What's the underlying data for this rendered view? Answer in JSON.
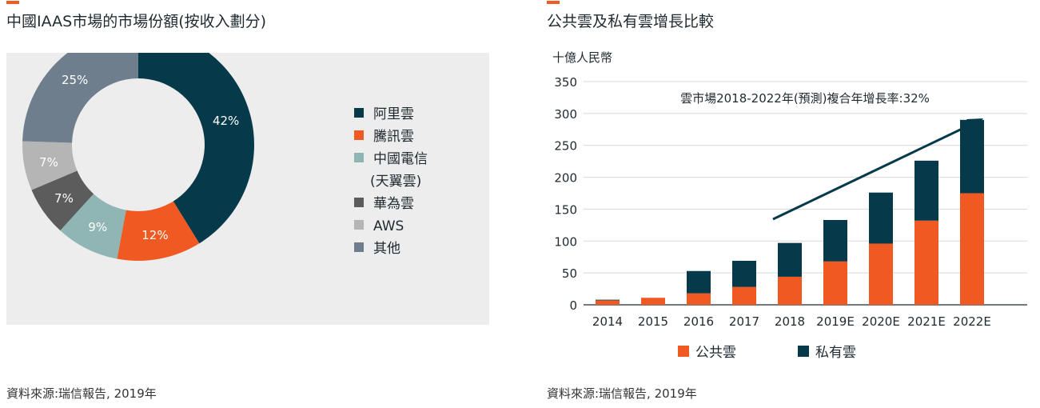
{
  "left": {
    "title": "中國IAAS市場的市場份額(按收入劃分)",
    "source": "資料來源:瑞信報告, 2019年"
  },
  "right": {
    "title": "公共雲及私有雲增長比較",
    "source": "資料來源:瑞信報告, 2019年"
  },
  "colors": {
    "accent": "#f05a22",
    "panel_bg": "#ededed",
    "alibaba": "#063a4a",
    "tencent": "#f05a22",
    "china_telecom": "#8fb5b5",
    "huawei": "#5c5c5c",
    "aws": "#b5b5b5",
    "other": "#6e7e8c",
    "public_cloud": "#f05a22",
    "private_cloud": "#063a4a"
  },
  "chart_data": [
    {
      "type": "pie",
      "donut": true,
      "title": "中國IAAS市場的市場份額(按收入劃分)",
      "slices": [
        {
          "label": "阿里雲",
          "value": 42,
          "value_label": "42%"
        },
        {
          "label": "騰訊雲",
          "value": 12,
          "value_label": "12%"
        },
        {
          "label": "中國電信",
          "label_line2": "(天翼雲)",
          "value": 9,
          "value_label": "9%"
        },
        {
          "label": "華為雲",
          "value": 7,
          "value_label": "7%"
        },
        {
          "label": "AWS",
          "value": 7,
          "value_label": "7%"
        },
        {
          "label": "其他",
          "value": 25,
          "value_label": "25%"
        }
      ],
      "legend_position": "right"
    },
    {
      "type": "bar",
      "stacked": true,
      "title": "公共雲及私有雲增長比較",
      "ylabel": "十億人民幣",
      "annotation": "雲市場2018-2022年(預測)複合年增長率:32%",
      "categories": [
        "2014",
        "2015",
        "2016",
        "2017",
        "2018",
        "2019E",
        "2020E",
        "2021E",
        "2022E"
      ],
      "series": [
        {
          "name": "公共雲",
          "values": [
            7,
            11,
            18,
            28,
            44,
            68,
            96,
            132,
            175
          ]
        },
        {
          "name": "私有雲",
          "values": [
            1,
            0,
            35,
            41,
            53,
            65,
            80,
            94,
            115
          ]
        }
      ],
      "ylim": [
        0,
        350
      ],
      "yticks": [
        0,
        50,
        100,
        150,
        200,
        250,
        300,
        350
      ],
      "grid": true,
      "legend_position": "bottom"
    }
  ]
}
